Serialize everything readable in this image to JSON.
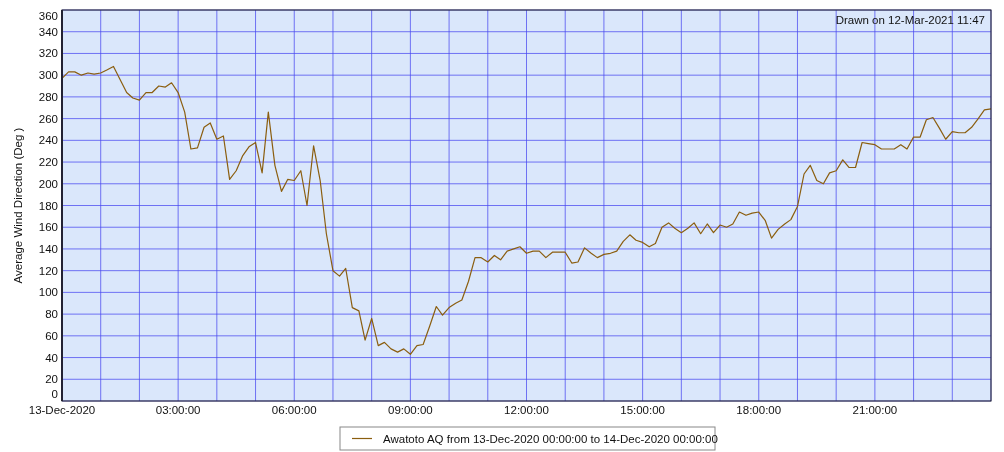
{
  "chart_data": {
    "type": "line",
    "ylabel": "Average Wind Direction (Deg )",
    "annotations": [
      "Drawn on 12-Mar-2021 11:47"
    ],
    "x": [
      0,
      0.17,
      0.33,
      0.5,
      0.67,
      0.83,
      1,
      1.17,
      1.33,
      1.5,
      1.67,
      1.83,
      2,
      2.17,
      2.33,
      2.5,
      2.67,
      2.83,
      3,
      3.17,
      3.33,
      3.5,
      3.67,
      3.83,
      4,
      4.17,
      4.33,
      4.5,
      4.67,
      4.83,
      5,
      5.17,
      5.33,
      5.5,
      5.67,
      5.83,
      6,
      6.17,
      6.33,
      6.5,
      6.67,
      6.83,
      7,
      7.17,
      7.33,
      7.5,
      7.67,
      7.83,
      8,
      8.17,
      8.33,
      8.5,
      8.67,
      8.83,
      9,
      9.17,
      9.33,
      9.5,
      9.67,
      9.83,
      10,
      10.17,
      10.33,
      10.5,
      10.67,
      10.83,
      11,
      11.17,
      11.33,
      11.5,
      11.67,
      11.83,
      12,
      12.17,
      12.33,
      12.5,
      12.67,
      12.83,
      13,
      13.17,
      13.33,
      13.5,
      13.67,
      13.83,
      14,
      14.17,
      14.33,
      14.5,
      14.67,
      14.83,
      15,
      15.17,
      15.33,
      15.5,
      15.67,
      15.83,
      16,
      16.17,
      16.33,
      16.5,
      16.67,
      16.83,
      17,
      17.17,
      17.33,
      17.5,
      17.67,
      17.83,
      18,
      18.17,
      18.33,
      18.5,
      18.67,
      18.83,
      19,
      19.17,
      19.33,
      19.5,
      19.67,
      19.83,
      20,
      20.17,
      20.33,
      20.5,
      20.67,
      20.83,
      21,
      21.17,
      21.33,
      21.5,
      21.67,
      21.83,
      22,
      22.17,
      22.33,
      22.5,
      22.67,
      22.83,
      23,
      23.17,
      23.33,
      23.5,
      23.67,
      23.83,
      24
    ],
    "series": [
      {
        "name": "Awatoto AQ from 13-Dec-2020 00:00:00 to 14-Dec-2020 00:00:00",
        "color": "#8b5e0f",
        "values": [
          297,
          303,
          303,
          300,
          302,
          301,
          302,
          305,
          308,
          296,
          284,
          279,
          277,
          284,
          284,
          290,
          289,
          293,
          284,
          266,
          232,
          233,
          252,
          256,
          241,
          244,
          204,
          212,
          226,
          234,
          238,
          210,
          266,
          217,
          193,
          204,
          203,
          212,
          180,
          235,
          203,
          154,
          120,
          115,
          122,
          86,
          83,
          56,
          76,
          51,
          54,
          48,
          45,
          48,
          43,
          51,
          52,
          69,
          87,
          79,
          86,
          90,
          93,
          110,
          132,
          132,
          128,
          134,
          130,
          138,
          140,
          142,
          136,
          138,
          138,
          132,
          137,
          137,
          137,
          127,
          128,
          141,
          136,
          132,
          135,
          136,
          138,
          147,
          153,
          148,
          146,
          142,
          145,
          160,
          164,
          159,
          155,
          159,
          164,
          154,
          163,
          155,
          162,
          160,
          163,
          174,
          171,
          173,
          174,
          166,
          150,
          158,
          163,
          167,
          179,
          209,
          217,
          203,
          200,
          210,
          212,
          222,
          215,
          215,
          238,
          237,
          236,
          232,
          232,
          232,
          236,
          232,
          243,
          243,
          259,
          261,
          251,
          241,
          248,
          247,
          247,
          252,
          260,
          268,
          269
        ]
      }
    ],
    "xlim": [
      0,
      24
    ],
    "xticks": [
      {
        "value": 0,
        "label": "13-Dec-2020"
      },
      {
        "value": 1,
        "label": null
      },
      {
        "value": 2,
        "label": null
      },
      {
        "value": 3,
        "label": "03:00:00"
      },
      {
        "value": 4,
        "label": null
      },
      {
        "value": 5,
        "label": null
      },
      {
        "value": 6,
        "label": "06:00:00"
      },
      {
        "value": 7,
        "label": null
      },
      {
        "value": 8,
        "label": null
      },
      {
        "value": 9,
        "label": "09:00:00"
      },
      {
        "value": 10,
        "label": null
      },
      {
        "value": 11,
        "label": null
      },
      {
        "value": 12,
        "label": "12:00:00"
      },
      {
        "value": 13,
        "label": null
      },
      {
        "value": 14,
        "label": null
      },
      {
        "value": 15,
        "label": "15:00:00"
      },
      {
        "value": 16,
        "label": null
      },
      {
        "value": 17,
        "label": null
      },
      {
        "value": 18,
        "label": "18:00:00"
      },
      {
        "value": 19,
        "label": null
      },
      {
        "value": 20,
        "label": null
      },
      {
        "value": 21,
        "label": "21:00:00"
      },
      {
        "value": 22,
        "label": null
      },
      {
        "value": 23,
        "label": null
      },
      {
        "value": 24,
        "label": null
      }
    ],
    "ylim": [
      0,
      360
    ],
    "yticks": [
      0,
      20,
      40,
      60,
      80,
      100,
      120,
      140,
      160,
      180,
      200,
      220,
      240,
      260,
      280,
      300,
      320,
      340,
      360
    ],
    "grid": true,
    "legend": "bottom",
    "marker": "none",
    "line_style": "solid"
  }
}
